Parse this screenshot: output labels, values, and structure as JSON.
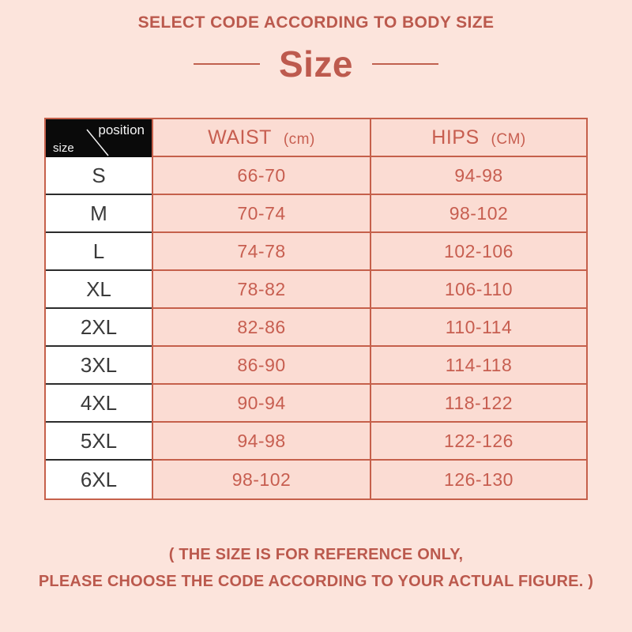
{
  "page": {
    "background_color": "#fce4dc",
    "accent_color": "#bb594d",
    "table_border_color": "#c5604b",
    "cell_background_color": "#fbdcd3",
    "corner_background_color": "#0a0a0a"
  },
  "header": {
    "subtitle": "SELECT CODE ACCORDING TO BODY SIZE",
    "title": "Size"
  },
  "table": {
    "corner": {
      "size_label": "size",
      "position_label": "position"
    },
    "columns": [
      {
        "label": "WAIST",
        "unit": "(cm)"
      },
      {
        "label": "HIPS",
        "unit": "(CM)"
      }
    ],
    "rows": [
      {
        "size": "S",
        "waist": "66-70",
        "hips": "94-98"
      },
      {
        "size": "M",
        "waist": "70-74",
        "hips": "98-102"
      },
      {
        "size": "L",
        "waist": "74-78",
        "hips": "102-106"
      },
      {
        "size": "XL",
        "waist": "78-82",
        "hips": "106-110"
      },
      {
        "size": "2XL",
        "waist": "82-86",
        "hips": "110-114"
      },
      {
        "size": "3XL",
        "waist": "86-90",
        "hips": "114-118"
      },
      {
        "size": "4XL",
        "waist": "90-94",
        "hips": "118-122"
      },
      {
        "size": "5XL",
        "waist": "94-98",
        "hips": "122-126"
      },
      {
        "size": "6XL",
        "waist": "98-102",
        "hips": "126-130"
      }
    ]
  },
  "footer": {
    "line1": "(  THE SIZE IS FOR REFERENCE ONLY,",
    "line2": "PLEASE CHOOSE THE CODE ACCORDING TO YOUR ACTUAL FIGURE.  )"
  }
}
